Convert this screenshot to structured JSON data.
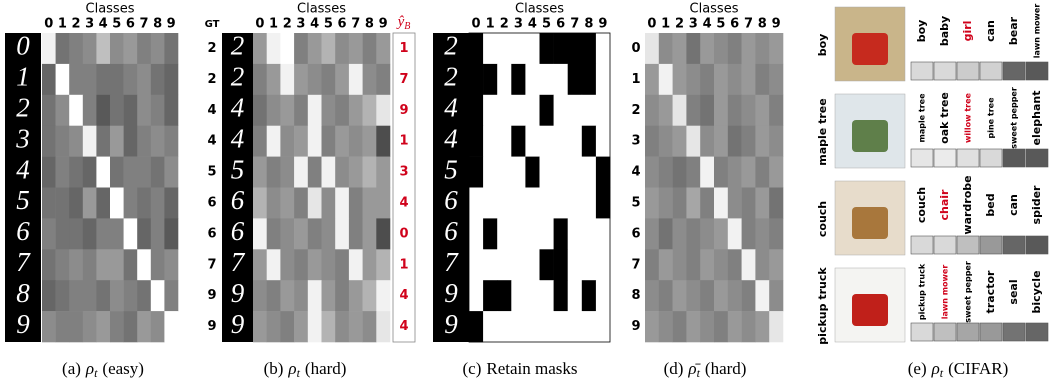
{
  "axis_title": "Classes",
  "class_labels": [
    "0",
    "1",
    "2",
    "3",
    "4",
    "5",
    "6",
    "7",
    "8",
    "9"
  ],
  "panel_a": {
    "digits": [
      "0",
      "1",
      "2",
      "3",
      "4",
      "5",
      "6",
      "7",
      "8",
      "9"
    ],
    "cells": [
      [
        0.95,
        0.45,
        0.5,
        0.55,
        0.75,
        0.55,
        0.6,
        0.5,
        0.55,
        0.45
      ],
      [
        0.4,
        1.0,
        0.5,
        0.5,
        0.45,
        0.45,
        0.5,
        0.55,
        0.45,
        0.4
      ],
      [
        0.45,
        0.55,
        1.0,
        0.5,
        0.35,
        0.45,
        0.4,
        0.55,
        0.5,
        0.4
      ],
      [
        0.45,
        0.5,
        0.55,
        0.95,
        0.45,
        0.6,
        0.4,
        0.5,
        0.55,
        0.5
      ],
      [
        0.4,
        0.5,
        0.45,
        0.4,
        1.0,
        0.45,
        0.5,
        0.5,
        0.45,
        0.55
      ],
      [
        0.45,
        0.45,
        0.4,
        0.6,
        0.4,
        1.0,
        0.5,
        0.45,
        0.5,
        0.4
      ],
      [
        0.5,
        0.45,
        0.45,
        0.4,
        0.5,
        0.5,
        1.0,
        0.4,
        0.5,
        0.35
      ],
      [
        0.45,
        0.5,
        0.55,
        0.5,
        0.6,
        0.6,
        0.45,
        1.0,
        0.5,
        0.55
      ],
      [
        0.4,
        0.45,
        0.5,
        0.5,
        0.45,
        0.55,
        0.5,
        0.45,
        1.0,
        0.5
      ],
      [
        0.55,
        0.5,
        0.5,
        0.55,
        0.6,
        0.5,
        0.45,
        0.6,
        0.55,
        1.0
      ]
    ],
    "caption": {
      "label": "(a)",
      "symbol": "ρ",
      "sub": "t",
      "text": "(easy)"
    }
  },
  "panel_b": {
    "gt_header": "GT",
    "gt": [
      "2",
      "2",
      "4",
      "4",
      "5",
      "6",
      "6",
      "7",
      "9",
      "9"
    ],
    "pred_symbol": "ŷ",
    "pred_sub": "B",
    "pred": [
      "1",
      "7",
      "9",
      "1",
      "3",
      "4",
      "0",
      "1",
      "4",
      "4"
    ],
    "pred_color": "#d0021b",
    "cells": [
      [
        0.6,
        0.95,
        1.0,
        0.5,
        0.6,
        0.7,
        0.55,
        0.6,
        0.5,
        0.6
      ],
      [
        0.5,
        0.6,
        0.95,
        0.6,
        0.55,
        0.5,
        0.6,
        0.95,
        0.55,
        0.5
      ],
      [
        0.45,
        0.55,
        0.6,
        0.5,
        0.95,
        0.55,
        0.5,
        0.6,
        0.7,
        0.9
      ],
      [
        0.5,
        0.95,
        0.55,
        0.6,
        0.95,
        0.5,
        0.6,
        0.55,
        0.6,
        0.3
      ],
      [
        0.6,
        0.5,
        0.55,
        0.95,
        0.5,
        0.95,
        0.55,
        0.6,
        0.7,
        0.6
      ],
      [
        0.7,
        0.55,
        0.6,
        0.5,
        0.9,
        0.55,
        0.95,
        0.5,
        0.6,
        0.6
      ],
      [
        0.95,
        0.5,
        0.55,
        0.6,
        0.5,
        0.55,
        0.95,
        0.5,
        0.6,
        0.3
      ],
      [
        0.6,
        0.95,
        0.55,
        0.5,
        0.6,
        0.55,
        0.5,
        0.95,
        0.6,
        0.7
      ],
      [
        0.55,
        0.5,
        0.6,
        0.55,
        0.95,
        0.6,
        0.5,
        0.6,
        0.7,
        0.95
      ],
      [
        0.6,
        0.55,
        0.5,
        0.6,
        0.95,
        0.7,
        0.55,
        0.6,
        0.55,
        0.9
      ]
    ],
    "caption": {
      "label": "(b)",
      "symbol": "ρ",
      "sub": "t",
      "text": "(hard)"
    }
  },
  "panel_c": {
    "digits": [
      "2",
      "2",
      "4",
      "4",
      "5",
      "6",
      "6",
      "7",
      "9",
      "9"
    ],
    "masks": [
      [
        0,
        1,
        1,
        1,
        1,
        0,
        0,
        0,
        0,
        1
      ],
      [
        0,
        0,
        1,
        0,
        1,
        1,
        1,
        0,
        0,
        1
      ],
      [
        0,
        1,
        1,
        1,
        1,
        0,
        1,
        1,
        1,
        1
      ],
      [
        0,
        1,
        1,
        0,
        1,
        1,
        1,
        1,
        0,
        1
      ],
      [
        0,
        1,
        1,
        1,
        0,
        1,
        1,
        1,
        1,
        0
      ],
      [
        1,
        1,
        1,
        1,
        1,
        1,
        1,
        1,
        1,
        0
      ],
      [
        1,
        0,
        1,
        1,
        1,
        1,
        0,
        1,
        1,
        1
      ],
      [
        1,
        1,
        1,
        1,
        1,
        0,
        0,
        1,
        1,
        1
      ],
      [
        1,
        0,
        0,
        1,
        1,
        1,
        0,
        1,
        0,
        1
      ],
      [
        0,
        1,
        1,
        1,
        1,
        1,
        1,
        1,
        1,
        1
      ]
    ],
    "caption": {
      "label": "(c)",
      "text": "Retain masks"
    }
  },
  "panel_d": {
    "rows": [
      "0",
      "1",
      "2",
      "3",
      "4",
      "5",
      "6",
      "7",
      "8",
      "9"
    ],
    "cells": [
      [
        0.9,
        0.55,
        0.6,
        0.45,
        0.6,
        0.55,
        0.5,
        0.6,
        0.55,
        0.6
      ],
      [
        0.6,
        0.95,
        0.6,
        0.55,
        0.5,
        0.6,
        0.55,
        0.6,
        0.5,
        0.55
      ],
      [
        0.55,
        0.6,
        0.9,
        0.5,
        0.45,
        0.6,
        0.5,
        0.55,
        0.6,
        0.5
      ],
      [
        0.5,
        0.55,
        0.6,
        0.9,
        0.55,
        0.6,
        0.45,
        0.5,
        0.6,
        0.55
      ],
      [
        0.55,
        0.5,
        0.45,
        0.5,
        0.95,
        0.5,
        0.55,
        0.6,
        0.5,
        0.6
      ],
      [
        0.6,
        0.55,
        0.5,
        0.65,
        0.5,
        0.95,
        0.55,
        0.5,
        0.6,
        0.45
      ],
      [
        0.55,
        0.45,
        0.55,
        0.5,
        0.55,
        0.6,
        0.95,
        0.5,
        0.55,
        0.5
      ],
      [
        0.5,
        0.6,
        0.55,
        0.5,
        0.6,
        0.55,
        0.5,
        0.95,
        0.55,
        0.6
      ],
      [
        0.55,
        0.5,
        0.6,
        0.55,
        0.5,
        0.6,
        0.55,
        0.5,
        0.95,
        0.55
      ],
      [
        0.6,
        0.55,
        0.5,
        0.6,
        0.55,
        0.5,
        0.6,
        0.55,
        0.6,
        0.9
      ]
    ],
    "caption": {
      "label": "(d)",
      "symbol": "ρ̄",
      "sub": "t",
      "text": "(hard)"
    }
  },
  "panel_e": {
    "highlight_color": "#d0021b",
    "blocks": [
      {
        "label": "boy",
        "words": [
          "boy",
          "baby",
          "girl",
          "can",
          "bear",
          "lawn mower"
        ],
        "highlight": 2,
        "cells": [
          0.85,
          0.85,
          0.8,
          0.82,
          0.4,
          0.35
        ]
      },
      {
        "label": "maple tree",
        "words": [
          "maple tree",
          "oak tree",
          "willow tree",
          "pine tree",
          "sweet pepper",
          "elephant"
        ],
        "highlight": 2,
        "cells": [
          0.9,
          0.92,
          0.88,
          0.85,
          0.35,
          0.35
        ]
      },
      {
        "label": "couch",
        "words": [
          "couch",
          "chair",
          "wardrobe",
          "bed",
          "can",
          "spider"
        ],
        "highlight": 1,
        "cells": [
          0.85,
          0.85,
          0.75,
          0.6,
          0.4,
          0.35
        ]
      },
      {
        "label": "pickup truck",
        "words": [
          "pickup truck",
          "lawn mower",
          "sweet pepper",
          "tractor",
          "seal",
          "bicycle"
        ],
        "highlight": 1,
        "cells": [
          0.85,
          0.75,
          0.65,
          0.6,
          0.45,
          0.4
        ]
      }
    ],
    "caption": {
      "label": "(e)",
      "symbol": "ρ",
      "sub": "t",
      "text": "(CIFAR)"
    }
  }
}
